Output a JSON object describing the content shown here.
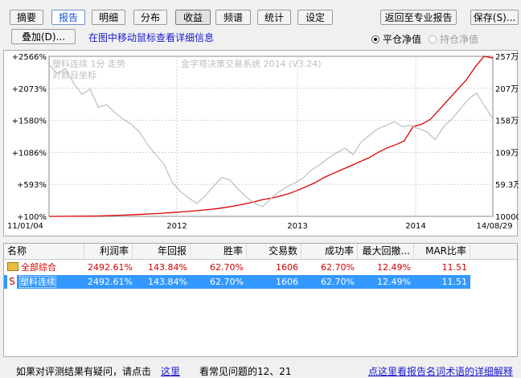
{
  "toolbar": {
    "tabs": [
      {
        "label": "摘要",
        "state": "normal"
      },
      {
        "label": "报告",
        "state": "active"
      },
      {
        "label": "明细",
        "state": "normal"
      },
      {
        "label": "分布",
        "state": "normal"
      },
      {
        "label": "收益",
        "state": "pressed"
      },
      {
        "label": "频谱",
        "state": "normal"
      },
      {
        "label": "统计",
        "state": "normal"
      },
      {
        "label": "设定",
        "state": "normal"
      }
    ],
    "return_label": "返回至专业报告",
    "save_label": "保存(S)..."
  },
  "subbar": {
    "overlay_label": "叠加(D)...",
    "hint_link": "在图中移动鼠标查看详细信息",
    "radio_flat": "平仓净值",
    "radio_hold": "持仓净值",
    "radio_selected": "flat"
  },
  "chart_data": {
    "type": "line",
    "watermark_line1": "塑料连续 1分 走势",
    "watermark_line2": "对数日坐标",
    "watermark_center": "金字塔决策交易系统 2014 (V3.24)",
    "left_axis_labels": [
      "+2566%",
      "+2073%",
      "+1580%",
      "+1086%",
      "+593%",
      "+100%"
    ],
    "right_axis_labels": [
      "257万",
      "207万",
      "158万",
      "109万",
      "59.3万",
      "10000"
    ],
    "x_tick_labels": [
      "11/01/04",
      "2012",
      "2013",
      "2014",
      "14/08/29"
    ],
    "series": [
      {
        "name": "收益",
        "color": "#e00000",
        "values": [
          100,
          100,
          101,
          102,
          103,
          105,
          108,
          112,
          117,
          122,
          128,
          135,
          142,
          150,
          160,
          170,
          180,
          192,
          205,
          220,
          240,
          262,
          290,
          320,
          355,
          380,
          410,
          450,
          500,
          560,
          620,
          700,
          760,
          820,
          880,
          940,
          1000,
          1080,
          1150,
          1200,
          1260,
          1480,
          1520,
          1600,
          1750,
          1900,
          2050,
          2200,
          2400,
          2566,
          2540
        ]
      },
      {
        "name": "塑料连续",
        "color": "#b8b8b8",
        "values": [
          2440,
          2300,
          2380,
          2150,
          1980,
          2060,
          1780,
          1820,
          1700,
          1600,
          1520,
          1400,
          1200,
          1050,
          900,
          620,
          480,
          380,
          300,
          420,
          560,
          700,
          660,
          520,
          400,
          300,
          250,
          380,
          480,
          560,
          620,
          700,
          820,
          900,
          1000,
          1080,
          1150,
          1050,
          1250,
          1350,
          1450,
          1500,
          1560,
          1480,
          1500,
          1450,
          1400,
          1280,
          1480,
          1600,
          1750,
          1900,
          2000,
          1800,
          1600
        ]
      }
    ],
    "markers": [
      {
        "text": "2012"
      },
      {
        "text": "2013"
      },
      {
        "text": "2014"
      }
    ],
    "colors": {
      "grid": "#cfcfcf",
      "axis": "#888888"
    }
  },
  "table": {
    "headers": [
      "名称",
      "利润率",
      "年回报",
      "胜率",
      "交易数",
      "成功率",
      "最大回撤...",
      "MAR比率"
    ],
    "rows": [
      {
        "icon": "folder-icon",
        "name": "全部综合",
        "cells": [
          "2492.61%",
          "143.84%",
          "62.70%",
          "1606",
          "62.70%",
          "12.49%",
          "11.51"
        ],
        "style": "red"
      },
      {
        "icon": "S",
        "name": "塑料连续",
        "cells": [
          "2492.61%",
          "143.84%",
          "62.70%",
          "1606",
          "62.70%",
          "12.49%",
          "11.51"
        ],
        "style": "sel"
      }
    ]
  },
  "status": {
    "prefix": "如果对评测结果有疑问，请点击",
    "here_link": "这里",
    "faq": "看常见问题的12、21",
    "glossary_link": "点这里看报告名词术语的详细解释"
  }
}
